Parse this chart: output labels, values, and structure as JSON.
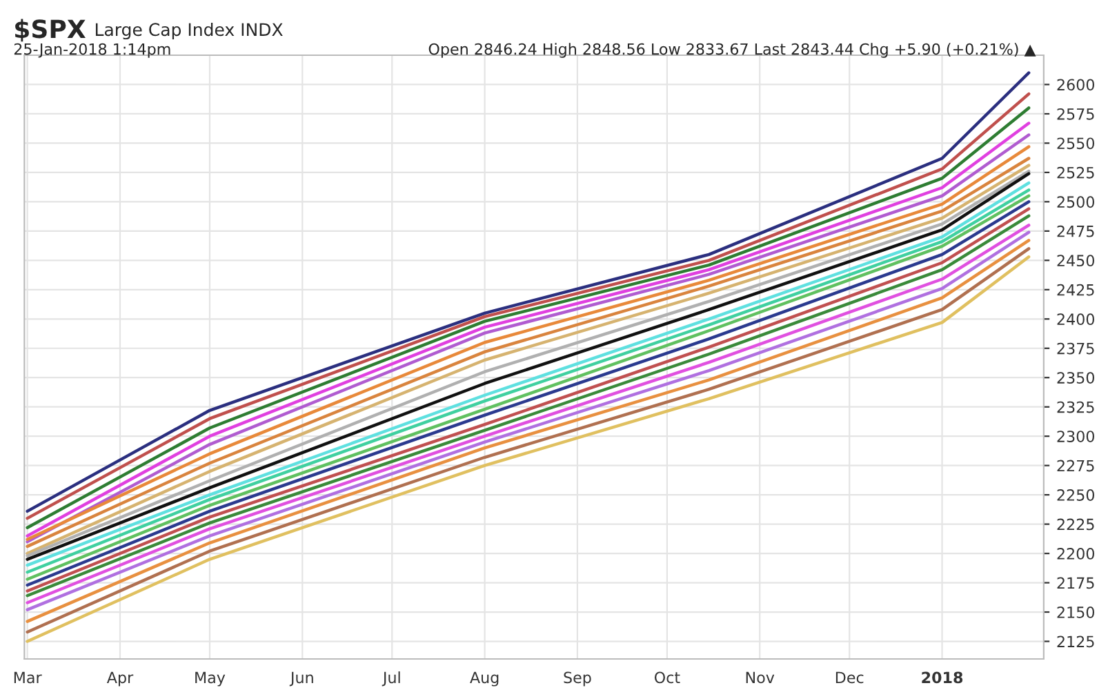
{
  "chart_data": {
    "type": "line",
    "title": "$SPX",
    "subtitle": "Large Cap Index INDX",
    "annotations": [
      "25-Jan-2018 1:14pm",
      "Open 2846.24 High 2848.56 Low 2833.67 Last 2843.44 Chg +5.90 (+0.21%) ▲"
    ],
    "x": [
      "2017-03-01",
      "2017-05-01",
      "2017-08-01",
      "2017-10-15",
      "2018-01-01",
      "2018-01-30"
    ],
    "series": [
      {
        "color": "#2b2f7f",
        "values": [
          2236,
          2322,
          2405,
          2455,
          2537,
          2610
        ]
      },
      {
        "color": "#c0504d",
        "values": [
          2230,
          2315,
          2402,
          2450,
          2528,
          2592
        ]
      },
      {
        "color": "#2e7d32",
        "values": [
          2222,
          2307,
          2398,
          2446,
          2520,
          2580
        ]
      },
      {
        "color": "#e040e0",
        "values": [
          2215,
          2300,
          2393,
          2442,
          2512,
          2567
        ]
      },
      {
        "color": "#b05cd0",
        "values": [
          2210,
          2293,
          2388,
          2438,
          2505,
          2557
        ]
      },
      {
        "color": "#e8893a",
        "values": [
          2212,
          2285,
          2380,
          2433,
          2498,
          2547
        ]
      },
      {
        "color": "#d9843e",
        "values": [
          2206,
          2277,
          2372,
          2428,
          2492,
          2537
        ]
      },
      {
        "color": "#d6b370",
        "values": [
          2200,
          2270,
          2365,
          2422,
          2486,
          2531
        ]
      },
      {
        "color": "#b0b0b0",
        "values": [
          2198,
          2262,
          2355,
          2415,
          2481,
          2526
        ]
      },
      {
        "color": "#111111",
        "values": [
          2195,
          2256,
          2345,
          2408,
          2476,
          2524
        ]
      },
      {
        "color": "#5fe0e0",
        "values": [
          2190,
          2250,
          2335,
          2400,
          2470,
          2516
        ]
      },
      {
        "color": "#40d0a0",
        "values": [
          2184,
          2246,
          2330,
          2395,
          2466,
          2510
        ]
      },
      {
        "color": "#60c060",
        "values": [
          2178,
          2241,
          2323,
          2390,
          2462,
          2505
        ]
      },
      {
        "color": "#2b3a8f",
        "values": [
          2173,
          2236,
          2318,
          2383,
          2455,
          2500
        ]
      },
      {
        "color": "#c05050",
        "values": [
          2168,
          2231,
          2310,
          2376,
          2448,
          2494
        ]
      },
      {
        "color": "#3a8a3a",
        "values": [
          2164,
          2226,
          2305,
          2370,
          2442,
          2488
        ]
      },
      {
        "color": "#e050e0",
        "values": [
          2158,
          2221,
          2300,
          2363,
          2434,
          2480
        ]
      },
      {
        "color": "#b070e0",
        "values": [
          2152,
          2215,
          2295,
          2356,
          2426,
          2474
        ]
      },
      {
        "color": "#e89040",
        "values": [
          2142,
          2209,
          2290,
          2348,
          2418,
          2467
        ]
      },
      {
        "color": "#b07050",
        "values": [
          2133,
          2202,
          2282,
          2340,
          2408,
          2460
        ]
      },
      {
        "color": "#e0c060",
        "values": [
          2125,
          2195,
          2275,
          2332,
          2397,
          2453
        ]
      }
    ],
    "xlim": [
      "2017-02-28",
      "2018-02-04"
    ],
    "xticks": [
      {
        "value": "2017-03-01",
        "label": "Mar"
      },
      {
        "value": "2017-04-01",
        "label": "Apr"
      },
      {
        "value": "2017-05-01",
        "label": "May"
      },
      {
        "value": "2017-06-01",
        "label": "Jun"
      },
      {
        "value": "2017-07-01",
        "label": "Jul"
      },
      {
        "value": "2017-08-01",
        "label": "Aug"
      },
      {
        "value": "2017-09-01",
        "label": "Sep"
      },
      {
        "value": "2017-10-01",
        "label": "Oct"
      },
      {
        "value": "2017-11-01",
        "label": "Nov"
      },
      {
        "value": "2017-12-01",
        "label": "Dec"
      },
      {
        "value": "2018-01-01",
        "label": "2018"
      }
    ],
    "ylim": [
      2110,
      2625
    ],
    "yticks": [
      2125,
      2150,
      2175,
      2200,
      2225,
      2250,
      2275,
      2300,
      2325,
      2350,
      2375,
      2400,
      2425,
      2450,
      2475,
      2500,
      2525,
      2550,
      2575,
      2600
    ],
    "grid": true,
    "legend": false,
    "marker": "none",
    "line_style": "solid"
  }
}
